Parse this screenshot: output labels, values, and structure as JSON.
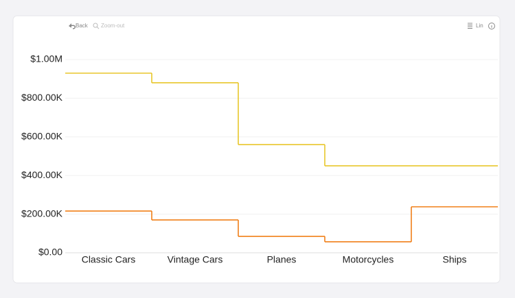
{
  "toolbar": {
    "back": "Back",
    "zoom_out": "Zoom-out",
    "scale": "Lin"
  },
  "chart_data": {
    "type": "step",
    "categories": [
      "Classic Cars",
      "Vintage Cars",
      "Planes",
      "Motorcycles",
      "Ships"
    ],
    "series": [
      {
        "color": "#e8c62a",
        "values": [
          930000,
          880000,
          560000,
          450000,
          450000
        ]
      },
      {
        "color": "#f07f17",
        "values": [
          216000,
          170000,
          85000,
          57000,
          238000
        ]
      }
    ],
    "ylim": [
      0,
      1000000
    ],
    "yticks": [
      {
        "value": 0,
        "label": "$0.00"
      },
      {
        "value": 200000,
        "label": "$200.00K"
      },
      {
        "value": 400000,
        "label": "$400.00K"
      },
      {
        "value": 600000,
        "label": "$600.00K"
      },
      {
        "value": 800000,
        "label": "$800.00K"
      },
      {
        "value": 1000000,
        "label": "$1.00M"
      }
    ],
    "grid": true
  }
}
